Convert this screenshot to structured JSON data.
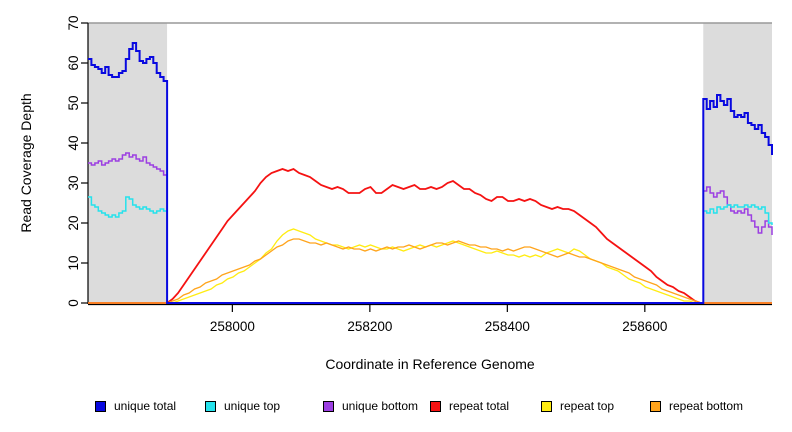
{
  "chart_data": {
    "type": "line",
    "title": "",
    "xlabel": "Coordinate in Reference Genome",
    "ylabel": "Read Coverage Depth",
    "xlim": [
      257790,
      258785
    ],
    "ylim": [
      0,
      70
    ],
    "x_ticks": [
      258000,
      258200,
      258400,
      258600
    ],
    "y_ticks": [
      0,
      10,
      20,
      30,
      40,
      50,
      60,
      70
    ],
    "grid": false,
    "legend_position": "bottom",
    "shade_color": "#DCDCDC",
    "shaded_regions": [
      [
        257790,
        257905
      ],
      [
        258685,
        258785
      ]
    ],
    "draw_order": [
      2,
      1,
      4,
      3,
      5,
      0
    ],
    "series": [
      {
        "name": "unique total",
        "color": "#0909E0",
        "lw": 2,
        "parts": [
          {
            "x0": 257790,
            "dx": 5,
            "mode": "step",
            "y": [
              61,
              59.5,
              59,
              58.5,
              57.5,
              59,
              57,
              56.5,
              56.5,
              57.5,
              58,
              61,
              63.5,
              65,
              63,
              60.5,
              60,
              61,
              61.5,
              60,
              57.5,
              56.5,
              55.5,
              54
            ]
          },
          {
            "x0": 257905,
            "dx": 780,
            "mode": "line",
            "y": [
              0,
              0
            ]
          },
          {
            "x0": 258685,
            "dx": 5,
            "mode": "step",
            "y": [
              51,
              48.5,
              50.5,
              49,
              52,
              50.5,
              49.5,
              51,
              48,
              46.5,
              47,
              46.5,
              47.5,
              45,
              44.5,
              43.5,
              44.5,
              42.5,
              41.5,
              39.5,
              37
            ]
          }
        ]
      },
      {
        "name": "unique top",
        "color": "#25E2EC",
        "lw": 1.5,
        "parts": [
          {
            "x0": 257790,
            "dx": 5,
            "mode": "step",
            "y": [
              26.5,
              24.5,
              24,
              23,
              22.5,
              22,
              21.5,
              22,
              21.5,
              22.5,
              23,
              26.5,
              26,
              24.5,
              24,
              23.5,
              24,
              23.5,
              23,
              22.5,
              23,
              23.5,
              23,
              23
            ]
          },
          {
            "x0": 257905,
            "dx": 780,
            "mode": "line",
            "y": [
              0,
              0
            ]
          },
          {
            "x0": 258685,
            "dx": 5,
            "mode": "step",
            "y": [
              23,
              22.5,
              23.5,
              22.5,
              24,
              23.5,
              24,
              24.5,
              24,
              24.5,
              24,
              24,
              24.5,
              24,
              24.5,
              24,
              23.5,
              24,
              22.5,
              20,
              19.5
            ]
          }
        ]
      },
      {
        "name": "unique bottom",
        "color": "#9C3FE2",
        "lw": 1.5,
        "parts": [
          {
            "x0": 257790,
            "dx": 5,
            "mode": "step",
            "y": [
              35,
              34.5,
              35,
              35.5,
              34.5,
              35,
              35.5,
              36,
              35.5,
              36,
              37,
              37.5,
              36.5,
              37,
              36,
              35.5,
              36.5,
              35,
              34.5,
              34,
              33.5,
              33,
              32,
              31
            ]
          },
          {
            "x0": 257905,
            "dx": 780,
            "mode": "line",
            "y": [
              0,
              0
            ]
          },
          {
            "x0": 258685,
            "dx": 5,
            "mode": "step",
            "y": [
              28,
              29,
              27.5,
              26.5,
              27.5,
              28,
              26.5,
              24.5,
              23,
              22.5,
              23,
              22.5,
              23.5,
              22,
              20.5,
              19,
              17.5,
              19,
              20.5,
              19,
              17
            ]
          }
        ]
      },
      {
        "name": "repeat total",
        "color": "#F51212",
        "lw": 1.8,
        "parts": [
          {
            "x0": 257790,
            "dx": 115,
            "mode": "line",
            "y": [
              0,
              0
            ]
          },
          {
            "x0": 257905,
            "dx": 8,
            "mode": "line",
            "y": [
              0,
              1,
              2.5,
              4.5,
              6.5,
              8.5,
              10.5,
              12.5,
              14.5,
              16.5,
              18.5,
              20.5,
              22,
              23.5,
              25,
              26.5,
              28,
              30,
              31.5,
              32.5,
              33,
              33.5,
              33,
              33.5,
              32.5,
              32,
              31.5,
              30.5,
              29.5,
              29,
              28.5,
              29,
              28.5,
              27.5,
              27.5,
              27.5,
              28.5,
              29,
              27.5,
              27.5,
              28.5,
              29.5,
              29,
              28.5,
              29,
              29.5,
              28.5,
              28.5,
              29,
              28.5,
              29,
              30,
              30.5,
              29.5,
              28.5,
              28.5,
              27.5,
              27,
              26,
              25.5,
              26.5,
              26.5,
              25.5,
              25.5,
              26,
              25.5,
              26,
              25.5,
              24.5,
              24,
              23.5,
              24,
              23.5,
              23.5,
              23,
              22,
              21,
              20,
              19,
              17.5,
              16,
              15,
              14,
              13,
              12,
              11,
              10,
              9,
              8,
              6.5,
              5.5,
              4.5,
              4,
              3,
              2.5,
              1.5,
              0.5,
              0
            ]
          },
          {
            "x0": 258685,
            "dx": 100,
            "mode": "line",
            "y": [
              0,
              0
            ]
          }
        ]
      },
      {
        "name": "repeat top",
        "color": "#FFEC12",
        "lw": 1.3,
        "parts": [
          {
            "x0": 257790,
            "dx": 115,
            "mode": "line",
            "y": [
              0,
              0
            ]
          },
          {
            "x0": 257905,
            "dx": 8,
            "mode": "line",
            "y": [
              0,
              0,
              0.5,
              1,
              1.5,
              2,
              2.5,
              3,
              3.5,
              4.5,
              5,
              6,
              6.5,
              7.5,
              8,
              9,
              10,
              11,
              12.5,
              13.5,
              15.5,
              17,
              18,
              18.5,
              18,
              17.5,
              17,
              16,
              15.5,
              15,
              14.5,
              14.5,
              14,
              13.5,
              14,
              14.5,
              14,
              14.5,
              14,
              13.5,
              13.5,
              14,
              13.5,
              13,
              13.5,
              14,
              14.5,
              14,
              14.5,
              14,
              14.5,
              15,
              15.5,
              15,
              14.5,
              14,
              13.5,
              13,
              12.5,
              12.5,
              13,
              12.5,
              12,
              12,
              11.5,
              12,
              11.5,
              12,
              11.5,
              12.5,
              13,
              13.5,
              13,
              12.5,
              13.5,
              13,
              12,
              11,
              10.5,
              10,
              9,
              8.5,
              8,
              7,
              6,
              5.5,
              5,
              4,
              3.5,
              3,
              2.5,
              2,
              1.5,
              1,
              0.5,
              0.5,
              0,
              0
            ]
          },
          {
            "x0": 258685,
            "dx": 100,
            "mode": "line",
            "y": [
              0,
              0
            ]
          }
        ]
      },
      {
        "name": "repeat bottom",
        "color": "#FFA41C",
        "lw": 1.3,
        "parts": [
          {
            "x0": 257790,
            "dx": 115,
            "mode": "line",
            "y": [
              0,
              0
            ]
          },
          {
            "x0": 257905,
            "dx": 8,
            "mode": "line",
            "y": [
              0,
              0.5,
              1,
              2,
              2.5,
              3.5,
              4,
              5,
              5.5,
              6,
              7,
              7.5,
              8,
              8.5,
              9,
              9.5,
              10.5,
              11,
              12,
              13,
              14,
              14.5,
              15.5,
              16,
              16,
              15.5,
              15,
              15,
              14.5,
              15,
              14.5,
              14,
              13.5,
              14,
              13.5,
              13.5,
              13,
              13.5,
              13,
              13.5,
              14,
              13.5,
              14,
              14,
              14.5,
              14,
              13.5,
              14,
              14.5,
              15,
              15,
              14.5,
              15,
              15.5,
              15,
              14.5,
              14.5,
              14,
              14,
              13.5,
              13.5,
              13,
              13.5,
              13,
              13.5,
              14,
              14,
              13.5,
              13,
              12.5,
              12,
              11.5,
              12,
              12.5,
              12,
              11.5,
              11.5,
              11,
              10.5,
              10,
              9.5,
              9,
              8.5,
              8,
              7.5,
              6.5,
              6,
              5.5,
              5,
              4.5,
              3.5,
              3,
              2.5,
              2,
              1.5,
              1,
              0.5,
              0
            ]
          },
          {
            "x0": 258685,
            "dx": 100,
            "mode": "line",
            "y": [
              0,
              0
            ]
          }
        ]
      }
    ]
  }
}
